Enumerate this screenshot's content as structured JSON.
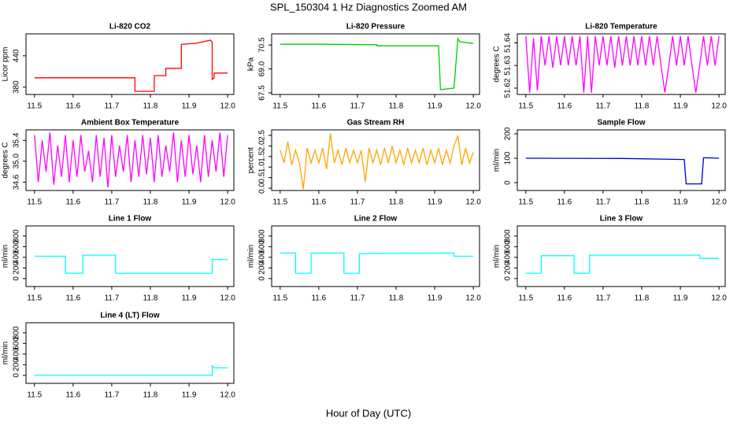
{
  "title": "SPL_150304  1 Hz Diagnostics Zoomed AM",
  "xlabel": "Hour of Day (UTC)",
  "chart_data": [
    {
      "type": "line",
      "title": "Li-820 CO2",
      "ylabel": "Licor ppm",
      "color": "#ff0000",
      "x": [
        11.5,
        11.76,
        11.76,
        11.81,
        11.81,
        11.84,
        11.84,
        11.88,
        11.88,
        11.92,
        11.955,
        11.96,
        11.96,
        11.965,
        11.965,
        12.0
      ],
      "values": [
        398,
        398,
        372,
        372,
        402,
        402,
        416,
        416,
        462,
        464,
        470,
        466,
        395,
        398,
        407,
        407
      ],
      "xlim": [
        11.478,
        12.016
      ],
      "xticks": [
        11.5,
        11.6,
        11.7,
        11.8,
        11.9,
        {
          "value": 12,
          "label": "12.0"
        }
      ],
      "ylim": [
        366,
        482
      ],
      "yticks": [
        380,
        440
      ]
    },
    {
      "type": "line",
      "title": "Li-820 Pressure",
      "ylabel": "kPa",
      "color": "#00cc00",
      "x": [
        11.5,
        11.6,
        11.75,
        11.75,
        11.91,
        11.915,
        11.95,
        11.96,
        11.965,
        12.0
      ],
      "values": [
        70.55,
        70.55,
        70.52,
        70.45,
        70.45,
        67.7,
        67.8,
        70.9,
        70.7,
        70.6
      ],
      "xlim": [
        11.478,
        12.016
      ],
      "xticks": [
        11.5,
        11.6,
        11.7,
        11.8,
        11.9,
        {
          "value": 12,
          "label": "12.0"
        }
      ],
      "ylim": [
        67.4,
        71.2
      ],
      "yticks": [
        67.5,
        {
          "value": 69,
          "label": "69.0"
        },
        70.5
      ]
    },
    {
      "type": "line",
      "title": "Li-820 Temperature",
      "ylabel": "degrees C",
      "color": "#ff00ff",
      "x": [
        11.5,
        11.51,
        11.52,
        11.53,
        11.54,
        11.55,
        11.56,
        11.57,
        11.58,
        11.59,
        11.6,
        11.61,
        11.62,
        11.63,
        11.64,
        11.65,
        11.66,
        11.67,
        11.68,
        11.69,
        11.7,
        11.71,
        11.72,
        11.73,
        11.74,
        11.75,
        11.76,
        11.77,
        11.78,
        11.79,
        11.8,
        11.81,
        11.82,
        11.83,
        11.84,
        11.85,
        11.86,
        11.87,
        11.88,
        11.89,
        11.9,
        11.91,
        11.92,
        11.93,
        11.94,
        11.95,
        11.96,
        11.97,
        11.98,
        11.99,
        12.0
      ],
      "values": [
        51.643,
        51.618,
        51.642,
        51.619,
        51.643,
        51.63,
        51.643,
        51.629,
        51.643,
        51.63,
        51.643,
        51.63,
        51.643,
        51.63,
        51.643,
        51.618,
        51.643,
        51.618,
        51.643,
        51.63,
        51.643,
        51.63,
        51.643,
        51.629,
        51.643,
        51.63,
        51.643,
        51.63,
        51.643,
        51.63,
        51.643,
        51.63,
        51.643,
        51.63,
        51.643,
        51.63,
        51.618,
        51.63,
        51.643,
        51.63,
        51.643,
        51.63,
        51.643,
        51.63,
        51.618,
        51.63,
        51.643,
        51.63,
        51.643,
        51.63,
        51.643
      ],
      "xlim": [
        11.478,
        12.016
      ],
      "xticks": [
        11.5,
        11.6,
        11.7,
        11.8,
        11.9,
        {
          "value": 12,
          "label": "12.0"
        }
      ],
      "ylim": [
        51.6172,
        51.644
      ],
      "yticks": [
        51.62,
        51.63,
        51.64
      ]
    },
    {
      "type": "line",
      "title": "Ambient Box Temperature",
      "ylabel": "degrees C",
      "color": "#ff00ff",
      "x": [
        11.5,
        11.51,
        11.52,
        11.53,
        11.54,
        11.55,
        11.56,
        11.57,
        11.58,
        11.59,
        11.6,
        11.61,
        11.62,
        11.63,
        11.64,
        11.65,
        11.66,
        11.67,
        11.68,
        11.69,
        11.7,
        11.71,
        11.72,
        11.73,
        11.74,
        11.75,
        11.76,
        11.77,
        11.78,
        11.79,
        11.8,
        11.81,
        11.82,
        11.83,
        11.84,
        11.85,
        11.86,
        11.87,
        11.88,
        11.89,
        11.9,
        11.91,
        11.92,
        11.93,
        11.94,
        11.95,
        11.96,
        11.97,
        11.98,
        11.99,
        12.0
      ],
      "values": [
        35.5,
        34.6,
        35.4,
        34.8,
        35.55,
        34.55,
        35.3,
        34.7,
        35.5,
        34.6,
        35.4,
        34.7,
        35.5,
        34.8,
        35.2,
        34.6,
        35.5,
        34.7,
        35.45,
        34.5,
        35.5,
        34.7,
        35.3,
        34.8,
        35.5,
        34.6,
        35.4,
        34.7,
        35.5,
        34.75,
        35.45,
        34.6,
        35.5,
        34.7,
        35.3,
        34.8,
        35.55,
        34.6,
        35.4,
        34.7,
        35.5,
        34.75,
        35.3,
        34.6,
        35.5,
        34.7,
        35.4,
        34.8,
        35.55,
        34.7,
        35.5
      ],
      "xlim": [
        11.478,
        12.016
      ],
      "xticks": [
        11.5,
        11.6,
        11.7,
        11.8,
        11.9,
        {
          "value": 12,
          "label": "12.0"
        }
      ],
      "ylim": [
        34.44,
        35.6
      ],
      "yticks": [
        34.6,
        {
          "value": 35,
          "label": "35.0"
        },
        35.4
      ]
    },
    {
      "type": "line",
      "title": "Gas Stream RH",
      "ylabel": "percent",
      "color": "#ffa500",
      "x": [
        11.5,
        11.51,
        11.52,
        11.53,
        11.54,
        11.55,
        11.56,
        11.57,
        11.58,
        11.59,
        11.6,
        11.61,
        11.62,
        11.63,
        11.64,
        11.65,
        11.66,
        11.67,
        11.68,
        11.69,
        11.7,
        11.71,
        11.72,
        11.73,
        11.74,
        11.75,
        11.76,
        11.77,
        11.78,
        11.79,
        11.8,
        11.81,
        11.82,
        11.83,
        11.84,
        11.85,
        11.86,
        11.87,
        11.88,
        11.89,
        11.9,
        11.91,
        11.92,
        11.93,
        11.94,
        11.95,
        11.96,
        11.97,
        11.98,
        11.99,
        12.0
      ],
      "values": [
        1.8,
        1.2,
        2.2,
        1.1,
        1.8,
        1.2,
        -0.05,
        1.9,
        1.2,
        1.8,
        1.2,
        1.9,
        0.9,
        2.6,
        1.2,
        1.8,
        1.1,
        1.9,
        1.2,
        1.8,
        1.2,
        1.8,
        0.3,
        1.9,
        1.2,
        1.8,
        1.1,
        1.9,
        1.2,
        2.0,
        1.2,
        1.8,
        1.1,
        1.9,
        1.2,
        1.8,
        1.2,
        1.9,
        1.1,
        1.8,
        1.2,
        1.9,
        1.1,
        1.8,
        1.2,
        2.0,
        2.5,
        1.1,
        1.9,
        1.2,
        1.7
      ],
      "xlim": [
        11.478,
        12.016
      ],
      "xticks": [
        11.5,
        11.6,
        11.7,
        11.8,
        11.9,
        {
          "value": 12,
          "label": "12.0"
        }
      ],
      "ylim": [
        -0.11,
        2.76
      ],
      "yticks": [
        {
          "value": 0,
          "label": "0.0"
        },
        0.5,
        {
          "value": 1,
          "label": "1.0"
        },
        1.5,
        {
          "value": 2,
          "label": "2.0"
        },
        2.5
      ]
    },
    {
      "type": "line",
      "title": "Sample Flow",
      "ylabel": "ml/min",
      "color": "#0000cc",
      "x": [
        11.5,
        11.75,
        11.91,
        11.915,
        11.955,
        11.96,
        12.0
      ],
      "values": [
        100,
        99,
        95,
        -5,
        -5,
        102,
        100
      ],
      "xlim": [
        11.478,
        12.016
      ],
      "xticks": [
        11.5,
        11.6,
        11.7,
        11.8,
        11.9,
        {
          "value": 12,
          "label": "12.0"
        }
      ],
      "ylim": [
        -32,
        216
      ],
      "yticks": [
        0,
        100,
        200
      ]
    },
    {
      "type": "line",
      "title": "Line 1 Flow",
      "ylabel": "ml/min",
      "color": "#00ffff",
      "x": [
        11.5,
        11.58,
        11.58,
        11.625,
        11.625,
        11.71,
        11.71,
        11.96,
        11.96,
        12.0
      ],
      "values": [
        420,
        420,
        100,
        100,
        440,
        440,
        100,
        100,
        360,
        360
      ],
      "xlim": [
        11.478,
        12.016
      ],
      "xticks": [
        11.5,
        11.6,
        11.7,
        11.8,
        11.9,
        {
          "value": 12,
          "label": "12.0"
        }
      ],
      "ylim": [
        -150,
        990
      ],
      "yticks": [
        0,
        200,
        400,
        600,
        800
      ]
    },
    {
      "type": "line",
      "title": "Line 2 Flow",
      "ylabel": "ml/min",
      "color": "#00ffff",
      "x": [
        11.5,
        11.54,
        11.54,
        11.58,
        11.58,
        11.665,
        11.665,
        11.705,
        11.705,
        11.95,
        11.95,
        12.0
      ],
      "values": [
        480,
        480,
        100,
        100,
        480,
        480,
        100,
        100,
        470,
        480,
        420,
        420
      ],
      "xlim": [
        11.478,
        12.016
      ],
      "xticks": [
        11.5,
        11.6,
        11.7,
        11.8,
        11.9,
        {
          "value": 12,
          "label": "12.0"
        }
      ],
      "ylim": [
        -150,
        990
      ],
      "yticks": [
        0,
        200,
        400,
        600,
        800
      ]
    },
    {
      "type": "line",
      "title": "Line 3 Flow",
      "ylabel": "ml/min",
      "color": "#00ffff",
      "x": [
        11.5,
        11.54,
        11.54,
        11.625,
        11.625,
        11.665,
        11.665,
        11.95,
        11.95,
        12.0
      ],
      "values": [
        100,
        100,
        430,
        430,
        100,
        100,
        440,
        440,
        380,
        380
      ],
      "xlim": [
        11.478,
        12.016
      ],
      "xticks": [
        11.5,
        11.6,
        11.7,
        11.8,
        11.9,
        {
          "value": 12,
          "label": "12.0"
        }
      ],
      "ylim": [
        -150,
        990
      ],
      "yticks": [
        0,
        200,
        400,
        600,
        800
      ]
    },
    {
      "type": "line",
      "title": "Line 4 (LT) Flow",
      "ylabel": "ml/min",
      "color": "#00ffff",
      "x": [
        11.5,
        11.96,
        11.96,
        11.965,
        12.0
      ],
      "values": [
        0,
        0,
        180,
        140,
        140
      ],
      "xlim": [
        11.478,
        12.016
      ],
      "xticks": [
        11.5,
        11.6,
        11.7,
        11.8,
        11.9,
        {
          "value": 12,
          "label": "12.0"
        }
      ],
      "ylim": [
        -150,
        990
      ],
      "yticks": [
        0,
        200,
        400,
        600,
        800
      ]
    }
  ]
}
